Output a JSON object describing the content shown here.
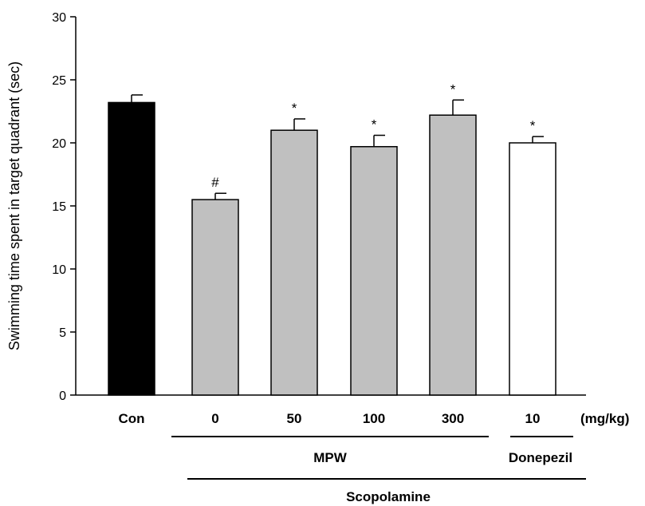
{
  "chart_data": {
    "type": "bar",
    "ylabel": "Swimming time spent in target quadrant (sec)",
    "ylim": [
      0,
      30
    ],
    "yticks": [
      0,
      5,
      10,
      15,
      20,
      25,
      30
    ],
    "categories": [
      "Con",
      "0",
      "50",
      "100",
      "300",
      "10"
    ],
    "values": [
      23.2,
      15.5,
      21.0,
      19.7,
      22.2,
      20.0
    ],
    "errors": [
      0.6,
      0.5,
      0.9,
      0.9,
      1.2,
      0.5
    ],
    "annotations": [
      "",
      "#",
      "*",
      "*",
      "*",
      "*"
    ],
    "bar_colors": [
      "#000000",
      "#c0c0c0",
      "#c0c0c0",
      "#c0c0c0",
      "#c0c0c0",
      "#ffffff"
    ],
    "unit_label": "(mg/kg)",
    "groups": [
      {
        "label": "MPW",
        "from": 1,
        "to": 4
      },
      {
        "label": "Donepezil",
        "from": 5,
        "to": 5
      },
      {
        "label": "Scopolamine",
        "from": 1,
        "to": 5
      }
    ]
  }
}
